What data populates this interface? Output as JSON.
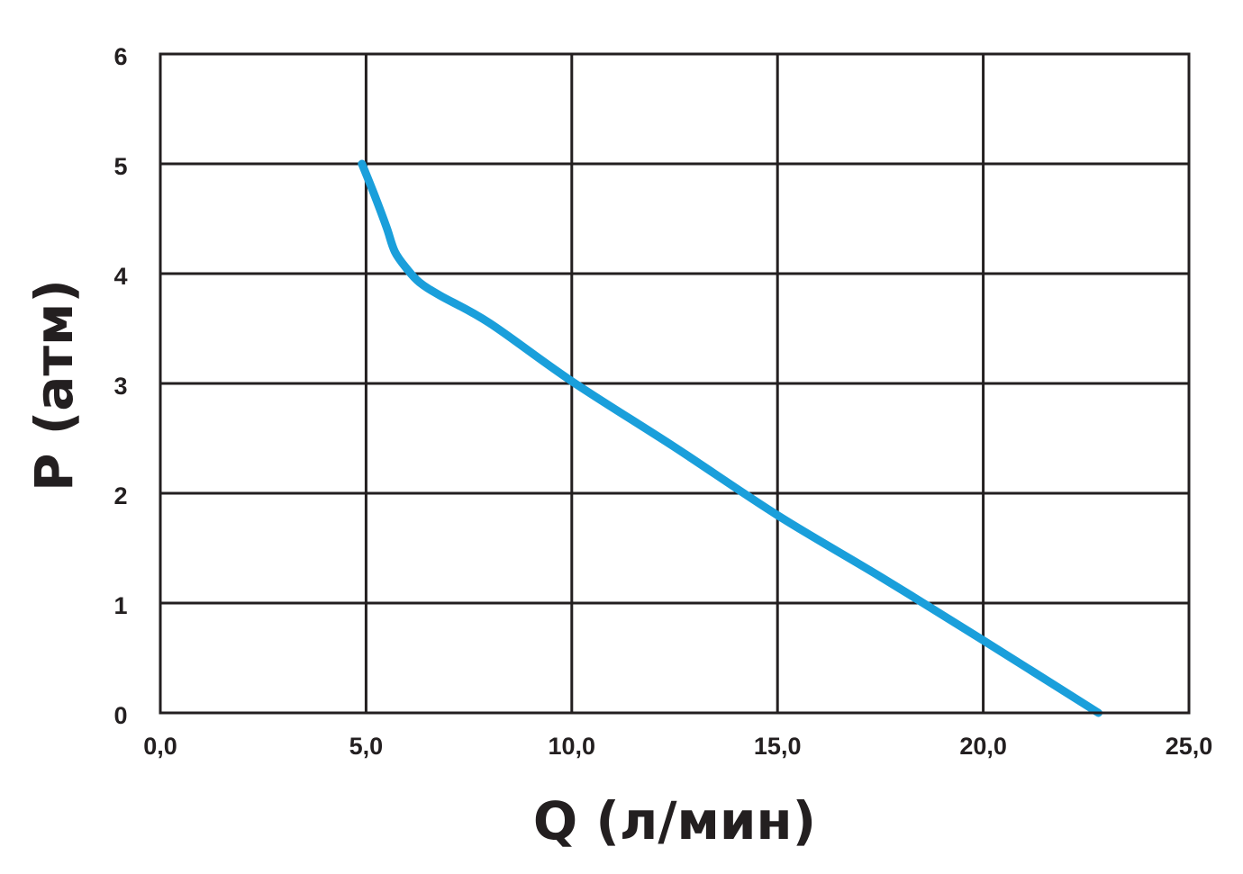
{
  "chart_data": {
    "type": "line",
    "title": "",
    "xlabel": "Q (л/мин)",
    "ylabel": "P (атм)",
    "xlim": [
      0,
      25
    ],
    "ylim": [
      0,
      6
    ],
    "x_ticks": [
      0,
      5,
      10,
      15,
      20,
      25
    ],
    "x_tick_labels": [
      "0,0",
      "5,0",
      "10,0",
      "15,0",
      "20,0",
      "25,0"
    ],
    "y_ticks": [
      0,
      1,
      2,
      3,
      4,
      5,
      6
    ],
    "y_tick_labels": [
      "0",
      "1",
      "2",
      "3",
      "4",
      "5",
      "6"
    ],
    "grid": true,
    "legend": "none",
    "series": [
      {
        "color": "#1a9fdb",
        "x": [
          4.9,
          5.2,
          5.5,
          5.7,
          6.0,
          6.3,
          6.8,
          8.0,
          10.0,
          12.5,
          15.0,
          17.5,
          20.0,
          22.8
        ],
        "y": [
          5.0,
          4.72,
          4.42,
          4.2,
          4.04,
          3.92,
          3.8,
          3.55,
          3.02,
          2.42,
          1.8,
          1.24,
          0.66,
          0.0
        ]
      }
    ]
  }
}
